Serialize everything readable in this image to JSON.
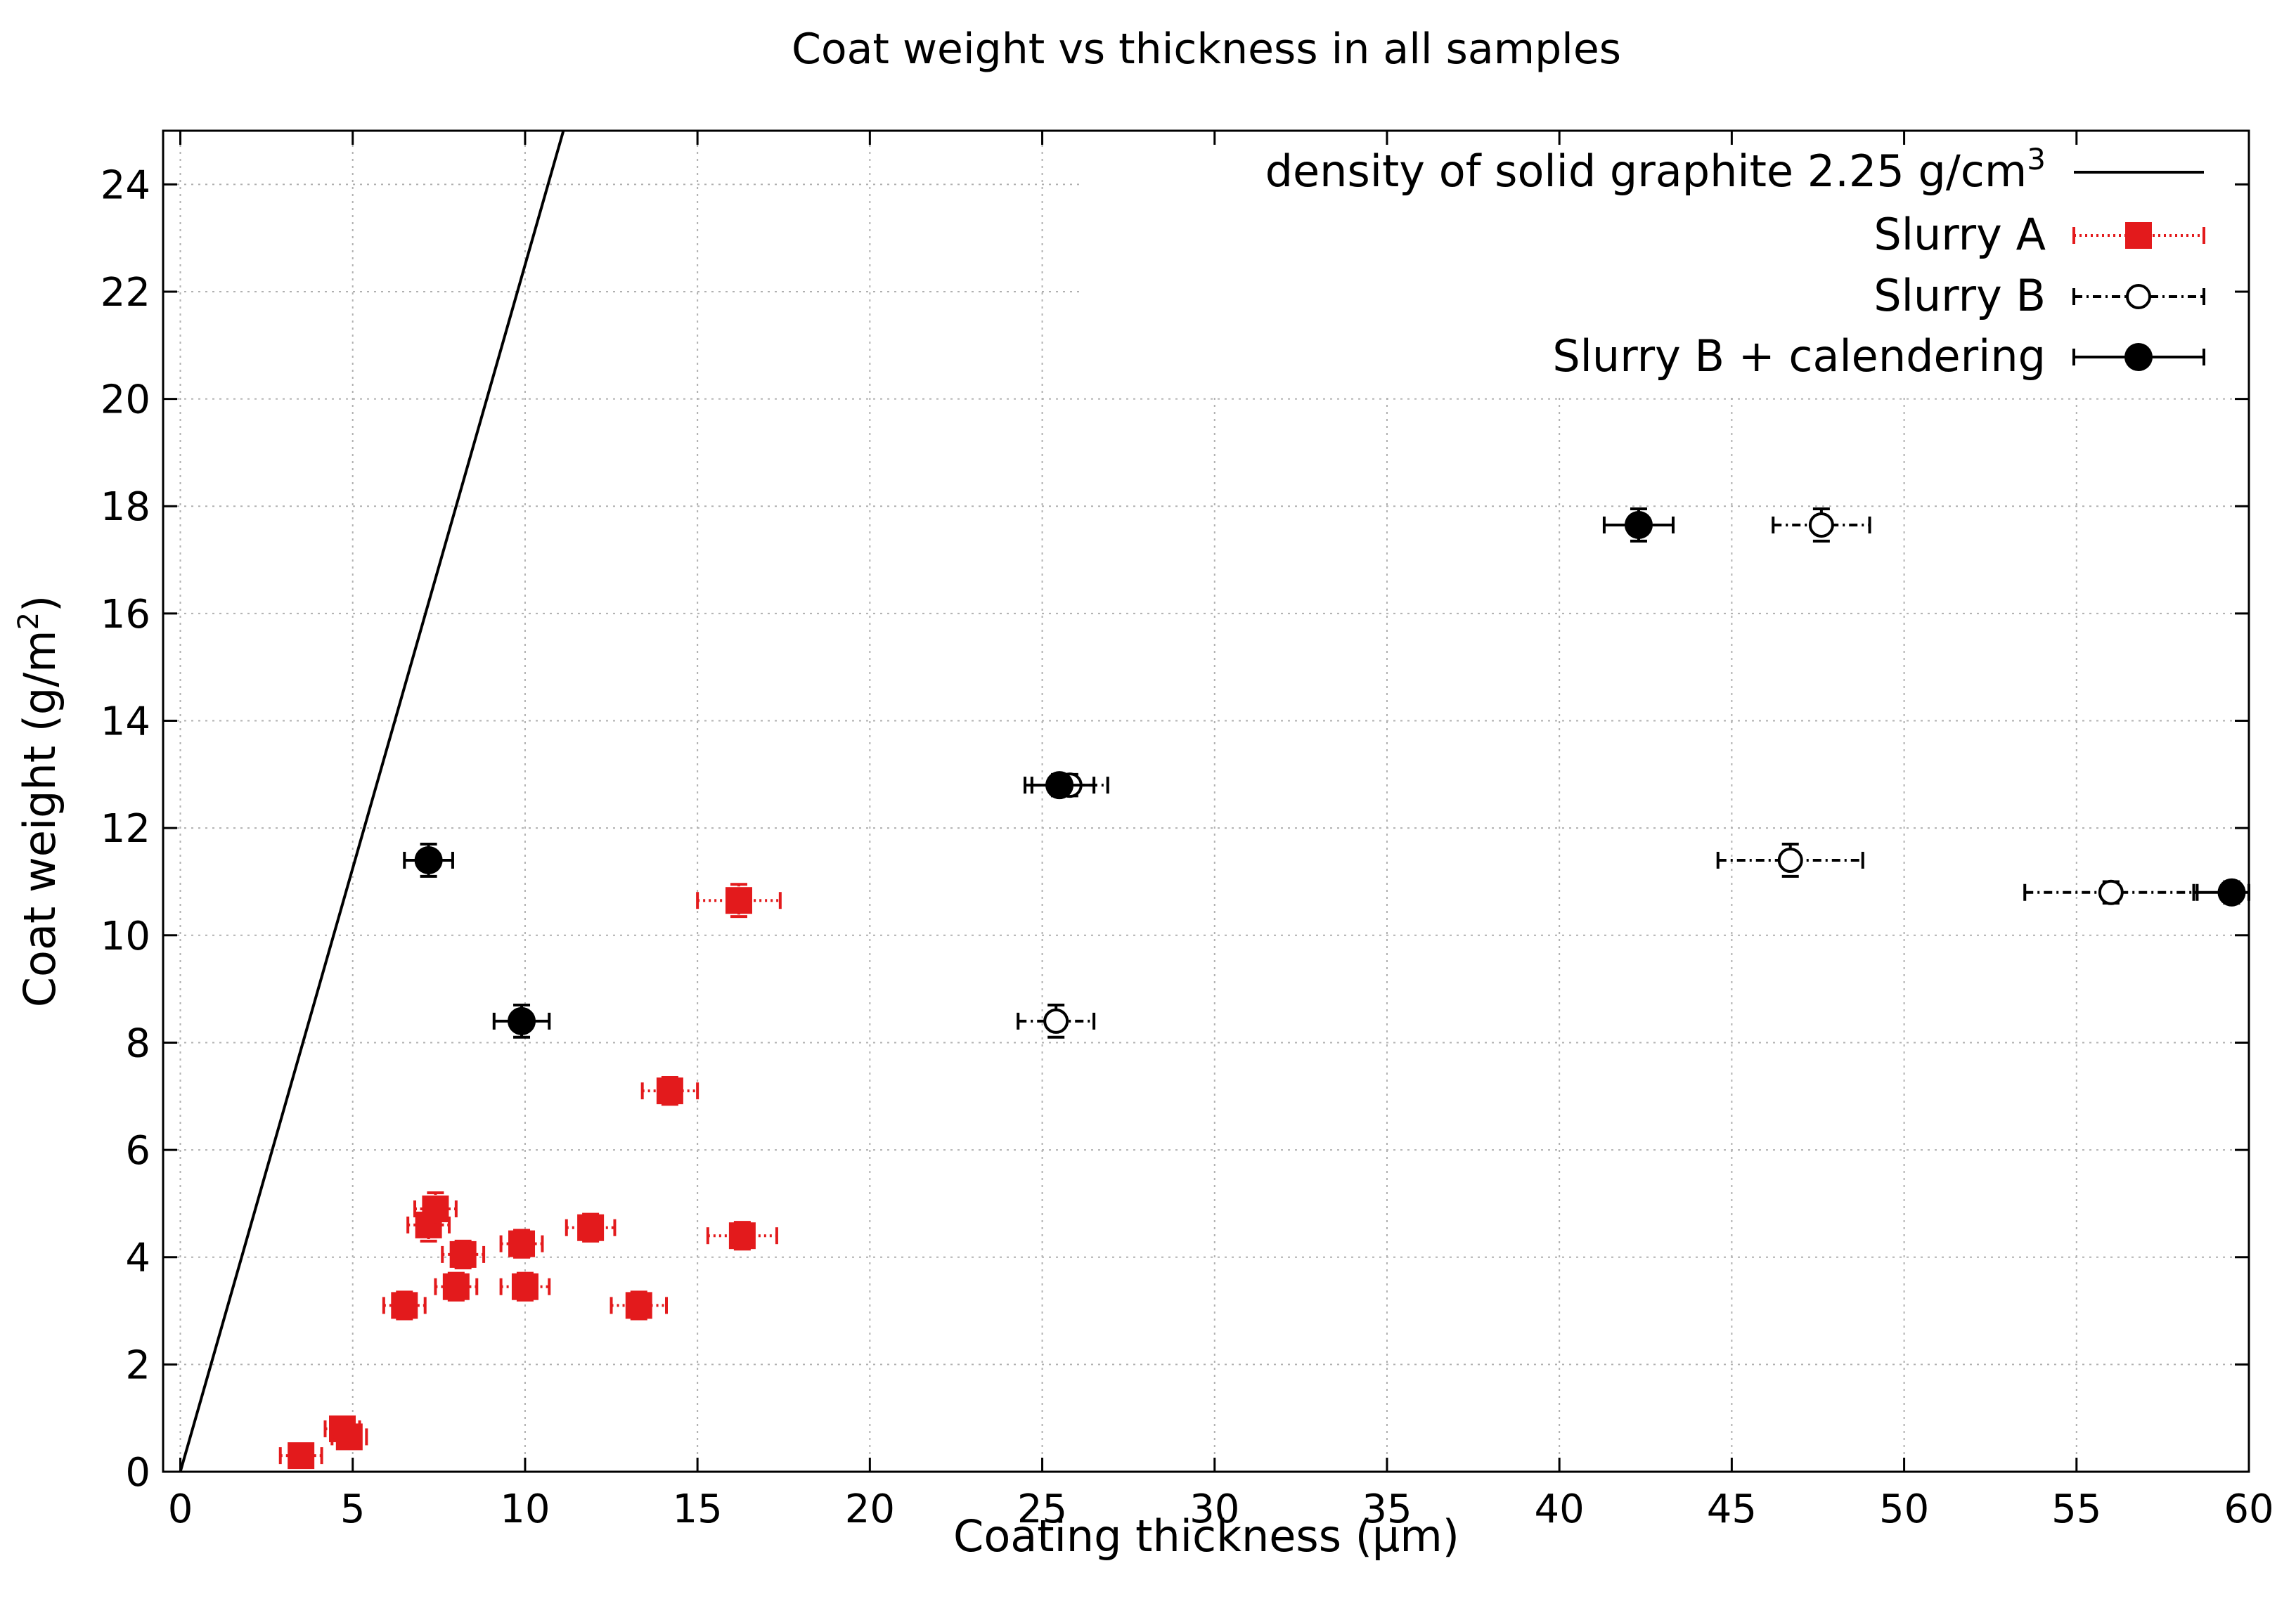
{
  "chart_data": {
    "type": "scatter",
    "title": "Coat weight vs thickness in all samples",
    "xlabel": "Coating thickness (µm)",
    "ylabel": "Coat weight (g/m",
    "ylabel_sup": "2",
    "ylabel_end": ")",
    "xlim": [
      -0.5,
      60
    ],
    "ylim": [
      0,
      25
    ],
    "xticks": [
      "0",
      "5",
      "10",
      "15",
      "20",
      "25",
      "30",
      "35",
      "40",
      "45",
      "50",
      "55",
      "60"
    ],
    "yticks": [
      "0",
      "2",
      "4",
      "6",
      "8",
      "10",
      "12",
      "14",
      "16",
      "18",
      "20",
      "22",
      "24"
    ],
    "grid": true,
    "legend_position": "top-right",
    "line": {
      "name": "density of solid graphite 2.25 g/cm",
      "name_sup": "3",
      "slope": 2.25,
      "color": "#000000"
    },
    "series": [
      {
        "name": "Slurry A",
        "color": "#e31a1c",
        "marker": "filled-square",
        "line_style": "dotted",
        "points": [
          {
            "x": 3.5,
            "y": 0.3,
            "xerr": 0.6,
            "yerr": 0.2
          },
          {
            "x": 4.7,
            "y": 0.8,
            "xerr": 0.5,
            "yerr": 0.2
          },
          {
            "x": 4.9,
            "y": 0.65,
            "xerr": 0.5,
            "yerr": 0.2
          },
          {
            "x": 6.5,
            "y": 3.1,
            "xerr": 0.6,
            "yerr": 0.25
          },
          {
            "x": 7.2,
            "y": 4.6,
            "xerr": 0.6,
            "yerr": 0.3
          },
          {
            "x": 7.4,
            "y": 4.9,
            "xerr": 0.6,
            "yerr": 0.3
          },
          {
            "x": 8.0,
            "y": 3.45,
            "xerr": 0.6,
            "yerr": 0.25
          },
          {
            "x": 8.2,
            "y": 4.05,
            "xerr": 0.6,
            "yerr": 0.25
          },
          {
            "x": 9.9,
            "y": 4.25,
            "xerr": 0.6,
            "yerr": 0.25
          },
          {
            "x": 10.0,
            "y": 3.45,
            "xerr": 0.7,
            "yerr": 0.25
          },
          {
            "x": 11.9,
            "y": 4.55,
            "xerr": 0.7,
            "yerr": 0.25
          },
          {
            "x": 13.3,
            "y": 3.1,
            "xerr": 0.8,
            "yerr": 0.25
          },
          {
            "x": 14.2,
            "y": 7.1,
            "xerr": 0.8,
            "yerr": 0.25
          },
          {
            "x": 16.2,
            "y": 10.65,
            "xerr": 1.2,
            "yerr": 0.3
          },
          {
            "x": 16.3,
            "y": 4.4,
            "xerr": 1.0,
            "yerr": 0.25
          }
        ]
      },
      {
        "name": "Slurry B",
        "color": "#000000",
        "marker": "open-circle",
        "line_style": "dash-dot",
        "points": [
          {
            "x": 25.4,
            "y": 8.4,
            "xerr": 1.1,
            "yerr": 0.3
          },
          {
            "x": 25.8,
            "y": 12.8,
            "xerr": 1.1,
            "yerr": 0.2
          },
          {
            "x": 46.7,
            "y": 11.4,
            "xerr": 2.1,
            "yerr": 0.3
          },
          {
            "x": 47.6,
            "y": 17.65,
            "xerr": 1.4,
            "yerr": 0.3
          },
          {
            "x": 56.0,
            "y": 10.8,
            "xerr": 2.5,
            "yerr": 0.2
          }
        ]
      },
      {
        "name": "Slurry B + calendering",
        "color": "#000000",
        "marker": "filled-circle",
        "line_style": "solid",
        "points": [
          {
            "x": 7.2,
            "y": 11.4,
            "xerr": 0.7,
            "yerr": 0.3
          },
          {
            "x": 9.9,
            "y": 8.4,
            "xerr": 0.8,
            "yerr": 0.3
          },
          {
            "x": 25.5,
            "y": 12.8,
            "xerr": 1.0,
            "yerr": 0.2
          },
          {
            "x": 42.3,
            "y": 17.65,
            "xerr": 1.0,
            "yerr": 0.3
          },
          {
            "x": 59.5,
            "y": 10.8,
            "xerr": 1.1,
            "yerr": 0.2
          }
        ]
      }
    ]
  }
}
